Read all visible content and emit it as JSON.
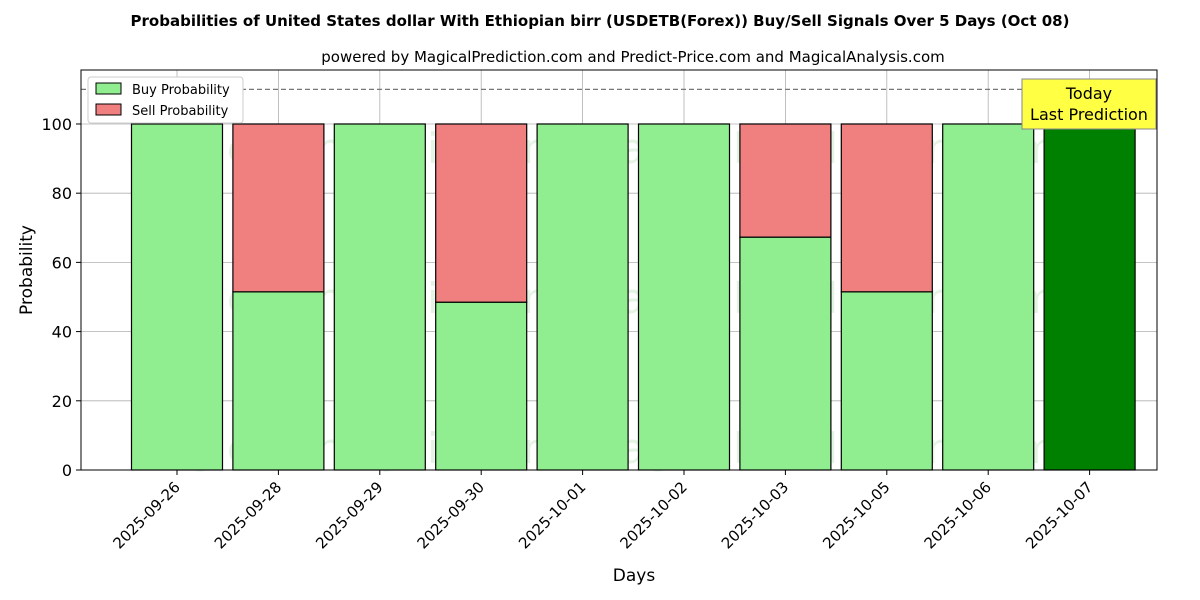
{
  "chart_data": {
    "type": "bar",
    "stacked": true,
    "title": "Probabilities of United States dollar With Ethiopian birr (USDETB(Forex)) Buy/Sell Signals Over 5 Days (Oct 08)",
    "subtitle": "powered by MagicalPrediction.com and Predict-Price.com and MagicalAnalysis.com",
    "xlabel": "Days",
    "ylabel": "Probability",
    "ylim": [
      0,
      115.6
    ],
    "yticks": [
      0,
      20,
      40,
      60,
      80,
      100
    ],
    "grid": true,
    "legend_position": "top-left",
    "categories": [
      "2025-09-26",
      "2025-09-28",
      "2025-09-29",
      "2025-09-30",
      "2025-10-01",
      "2025-10-02",
      "2025-10-03",
      "2025-10-05",
      "2025-10-06",
      "2025-10-07"
    ],
    "series": [
      {
        "name": "Buy Probability",
        "color": "#90ee90",
        "values": [
          100,
          51.5,
          100,
          48.5,
          100,
          100,
          67.3,
          51.5,
          100,
          100
        ]
      },
      {
        "name": "Sell Probability",
        "color": "#f08080",
        "values": [
          0,
          48.5,
          0,
          51.5,
          0,
          0,
          32.7,
          48.5,
          0,
          0
        ]
      }
    ],
    "highlight": {
      "index": 9,
      "color": "#008000"
    },
    "reference_line": 110,
    "annotation": {
      "line1": "Today",
      "line2": "Last Prediction",
      "color": "#ffff44"
    },
    "watermarks": [
      "MagicalAnalysis.com",
      "MagicalPrediction.com"
    ]
  }
}
